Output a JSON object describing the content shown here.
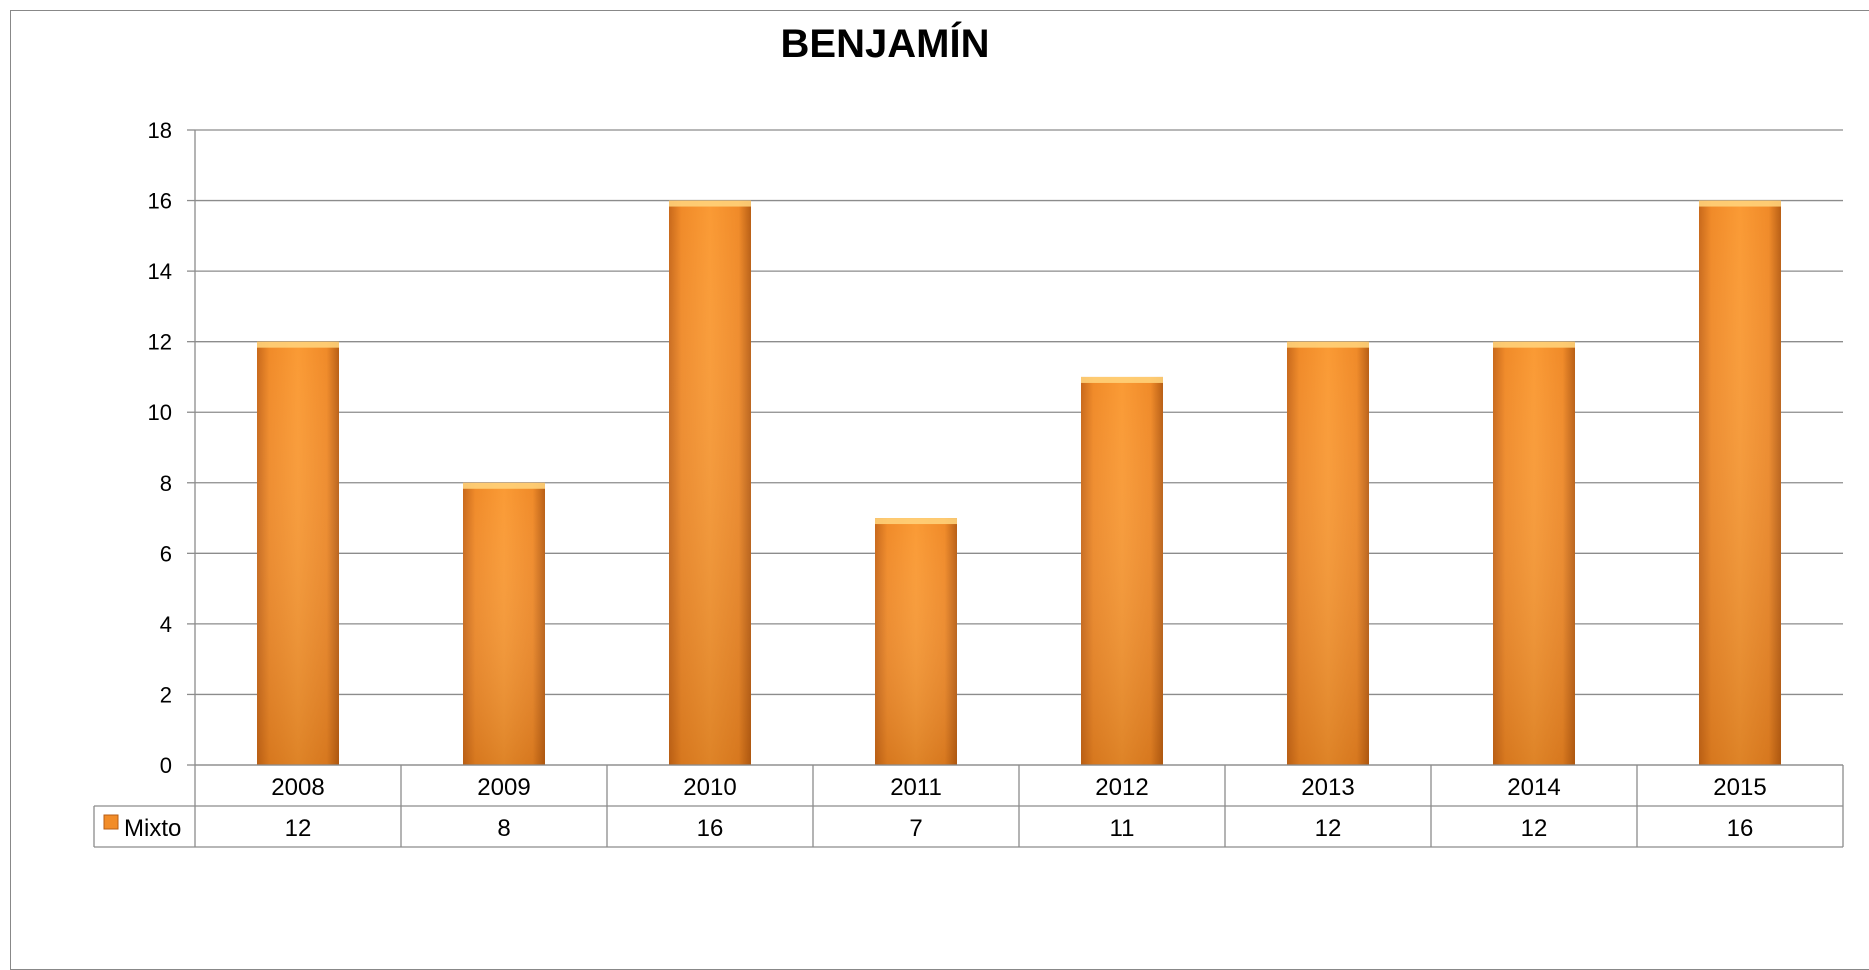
{
  "chart_data": {
    "type": "bar",
    "title": "BENJAMÍN",
    "categories": [
      "2008",
      "2009",
      "2010",
      "2011",
      "2012",
      "2013",
      "2014",
      "2015"
    ],
    "series": [
      {
        "name": "Mixto",
        "values": [
          12,
          8,
          16,
          7,
          11,
          12,
          12,
          16
        ],
        "color": "#f28c28"
      }
    ],
    "xlabel": "",
    "ylabel": "",
    "ylim": [
      0,
      18
    ],
    "yticks": [
      "0",
      "2",
      "4",
      "6",
      "8",
      "10",
      "12",
      "14",
      "16",
      "18"
    ],
    "grid": true,
    "legend": "data-table",
    "data_table": true
  }
}
